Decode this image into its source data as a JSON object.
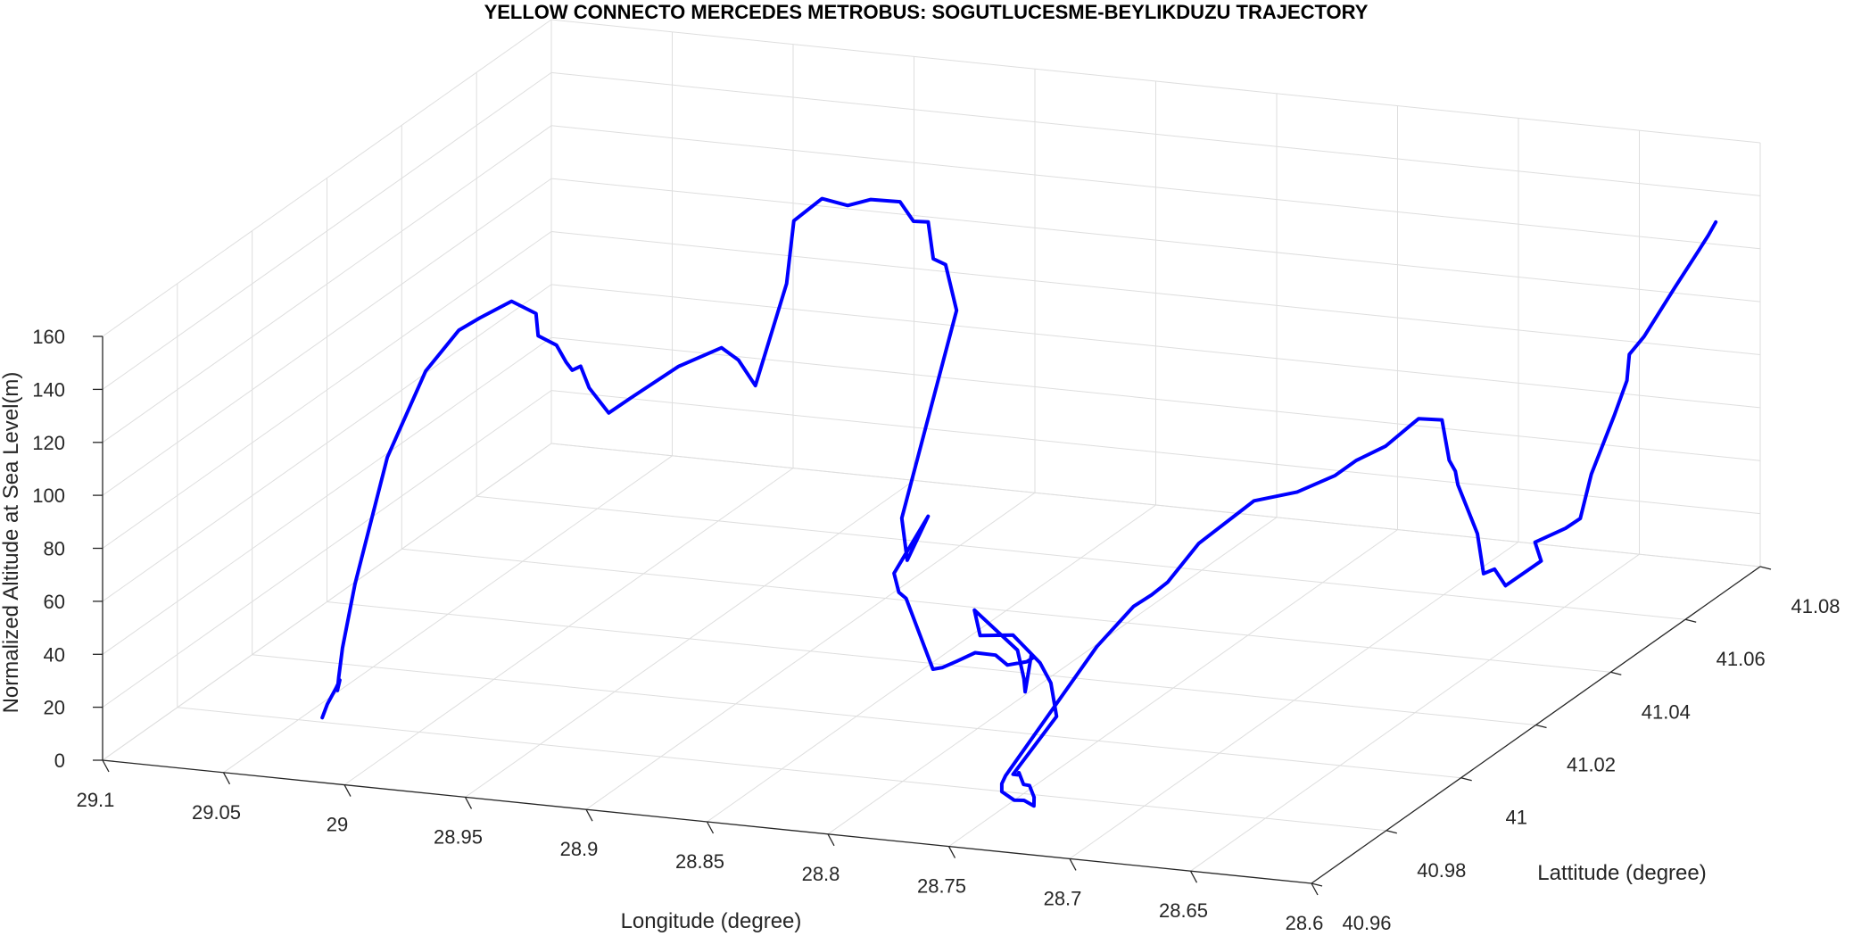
{
  "chart_data": {
    "type": "line",
    "title": "YELLOW CONNECTO MERCEDES METROBUS: SOGUTLUCESME-BEYLIKDUZU TRAJECTORY",
    "xlabel": "Longitude (degree)",
    "ylabel": "Lattitude (degree)",
    "zlabel": "Normalized Altitude at Sea Level(m)",
    "xlim": [
      28.6,
      29.1
    ],
    "ylim": [
      40.96,
      41.08
    ],
    "zlim": [
      0,
      160
    ],
    "x_ticks": [
      "28.6",
      "28.65",
      "28.7",
      "28.75",
      "28.8",
      "28.85",
      "28.9",
      "28.95",
      "29",
      "29.05",
      "29.1"
    ],
    "y_ticks": [
      "40.96",
      "40.98",
      "41",
      "41.02",
      "41.04",
      "41.06",
      "41.08"
    ],
    "z_ticks": [
      "0",
      "20",
      "40",
      "60",
      "80",
      "100",
      "120",
      "140",
      "160"
    ],
    "grid": true,
    "line_color": "#0000ff",
    "series": [
      {
        "values": [
          [
            29.037,
            40.978,
            4
          ],
          [
            29.038,
            40.98,
            7
          ],
          [
            29.039,
            40.983,
            10
          ],
          [
            29.039,
            40.984,
            12
          ],
          [
            29.04,
            40.984,
            8
          ],
          [
            29.041,
            40.985,
            12
          ],
          [
            29.041,
            40.986,
            22
          ],
          [
            29.042,
            40.99,
            42
          ],
          [
            29.041,
            40.998,
            82
          ],
          [
            29.036,
            41.005,
            108
          ],
          [
            29.03,
            41.01,
            119
          ],
          [
            29.026,
            41.013,
            121
          ],
          [
            29.019,
            41.017,
            124
          ],
          [
            29.012,
            41.019,
            118
          ],
          [
            29.008,
            41.017,
            112
          ],
          [
            29.002,
            41.018,
            108
          ],
          [
            28.998,
            41.018,
            102
          ],
          [
            28.997,
            41.019,
            98
          ],
          [
            28.992,
            41.018,
            101
          ],
          [
            28.99,
            41.019,
            92
          ],
          [
            28.985,
            41.021,
            81
          ],
          [
            28.982,
            41.025,
            83
          ],
          [
            28.97,
            41.03,
            91
          ],
          [
            28.96,
            41.035,
            94
          ],
          [
            28.953,
            41.035,
            90
          ],
          [
            28.946,
            41.035,
            81
          ],
          [
            28.93,
            41.033,
            123
          ],
          [
            28.927,
            41.033,
            147
          ],
          [
            28.92,
            41.036,
            153
          ],
          [
            28.914,
            41.039,
            148
          ],
          [
            28.906,
            41.04,
            150
          ],
          [
            28.897,
            41.042,
            148
          ],
          [
            28.893,
            41.043,
            140
          ],
          [
            28.89,
            41.045,
            138
          ],
          [
            28.891,
            41.047,
            122
          ],
          [
            28.889,
            41.049,
            118
          ],
          [
            28.886,
            41.05,
            100
          ],
          [
            28.87,
            41.025,
            48
          ],
          [
            28.86,
            41.02,
            38
          ],
          [
            28.856,
            41.023,
            52
          ],
          [
            28.85,
            41.01,
            44
          ],
          [
            28.848,
            41.01,
            37
          ],
          [
            28.845,
            41.01,
            35
          ],
          [
            28.837,
            41.012,
            7
          ],
          [
            28.833,
            41.012,
            8
          ],
          [
            28.827,
            41.012,
            11
          ],
          [
            28.818,
            41.011,
            16
          ],
          [
            28.808,
            41.01,
            17
          ],
          [
            28.8,
            41.008,
            16
          ],
          [
            28.792,
            41.008,
            18
          ],
          [
            28.789,
            41.008,
            20
          ],
          [
            28.787,
            41.006,
            23
          ],
          [
            28.788,
            41.005,
            10
          ],
          [
            28.787,
            41.004,
            16
          ],
          [
            28.785,
            41.001,
            30
          ],
          [
            28.775,
            40.983,
            64
          ],
          [
            28.768,
            40.98,
            58
          ],
          [
            28.759,
            40.983,
            56
          ],
          [
            28.754,
            40.987,
            42
          ],
          [
            28.748,
            40.986,
            36
          ],
          [
            28.741,
            40.983,
            27
          ],
          [
            28.742,
            40.972,
            16
          ],
          [
            28.74,
            40.972,
            16
          ],
          [
            28.738,
            40.971,
            18
          ],
          [
            28.733,
            40.969,
            16
          ],
          [
            28.729,
            40.968,
            17
          ],
          [
            28.724,
            40.966,
            15
          ],
          [
            28.721,
            40.964,
            14
          ],
          [
            28.722,
            40.962,
            18
          ],
          [
            28.723,
            40.96,
            20
          ],
          [
            28.725,
            40.958,
            25
          ],
          [
            28.725,
            40.958,
            28
          ],
          [
            28.725,
            40.959,
            30
          ],
          [
            28.712,
            40.975,
            64
          ],
          [
            28.703,
            40.979,
            76
          ],
          [
            28.697,
            40.98,
            80
          ],
          [
            28.695,
            40.983,
            82
          ],
          [
            28.69,
            40.988,
            92
          ],
          [
            28.681,
            40.997,
            100
          ],
          [
            28.674,
            41.004,
            97
          ],
          [
            28.666,
            41.009,
            99
          ],
          [
            28.662,
            41.012,
            102
          ],
          [
            28.656,
            41.016,
            104
          ],
          [
            28.651,
            41.02,
            109
          ],
          [
            28.65,
            41.021,
            110
          ],
          [
            28.645,
            41.024,
            107
          ],
          [
            28.642,
            41.024,
            92
          ],
          [
            28.641,
            41.025,
            87
          ],
          [
            28.64,
            41.025,
            82
          ],
          [
            28.635,
            41.027,
            62
          ],
          [
            28.634,
            41.028,
            46
          ],
          [
            28.631,
            41.029,
            47
          ],
          [
            28.628,
            41.03,
            40
          ],
          [
            28.621,
            41.035,
            45
          ],
          [
            28.622,
            41.034,
            53
          ],
          [
            28.614,
            41.037,
            56
          ],
          [
            28.611,
            41.039,
            58
          ],
          [
            28.608,
            41.04,
            74
          ],
          [
            28.603,
            41.043,
            94
          ],
          [
            28.601,
            41.045,
            105
          ],
          [
            28.6,
            41.045,
            115
          ],
          [
            28.597,
            41.047,
            120
          ],
          [
            28.592,
            41.052,
            134
          ],
          [
            28.59,
            41.057,
            143
          ],
          [
            28.589,
            41.059,
            147
          ],
          [
            28.589,
            41.061,
            150
          ]
        ]
      }
    ]
  }
}
